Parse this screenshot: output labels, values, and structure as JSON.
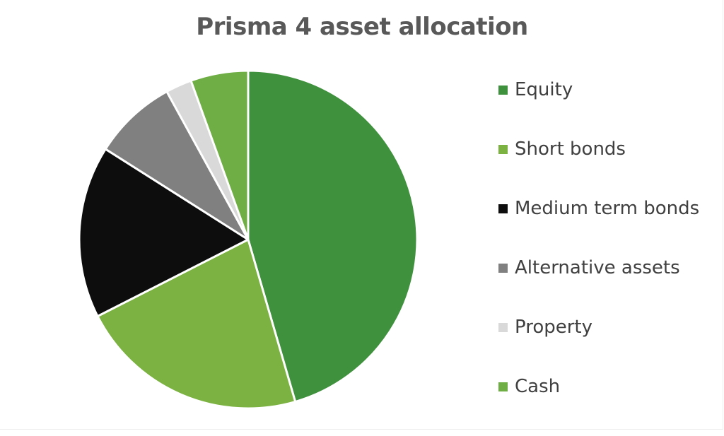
{
  "chart_data": {
    "type": "pie",
    "title": "Prisma 4 asset allocation",
    "start_angle_deg": 0,
    "direction": "clockwise",
    "slices": [
      {
        "label": "Equity",
        "value": 45.5,
        "color": "#40913e"
      },
      {
        "label": "Short bonds",
        "value": 22.0,
        "color": "#7bb241"
      },
      {
        "label": "Medium term bonds",
        "value": 16.5,
        "color": "#0d0d0d"
      },
      {
        "label": "Alternative assets",
        "value": 8.0,
        "color": "#808080"
      },
      {
        "label": "Property",
        "value": 2.5,
        "color": "#d9d9d9"
      },
      {
        "label": "Cash",
        "value": 5.5,
        "color": "#6fae45"
      }
    ],
    "legend_position": "right",
    "slice_border_color": "#ffffff"
  }
}
